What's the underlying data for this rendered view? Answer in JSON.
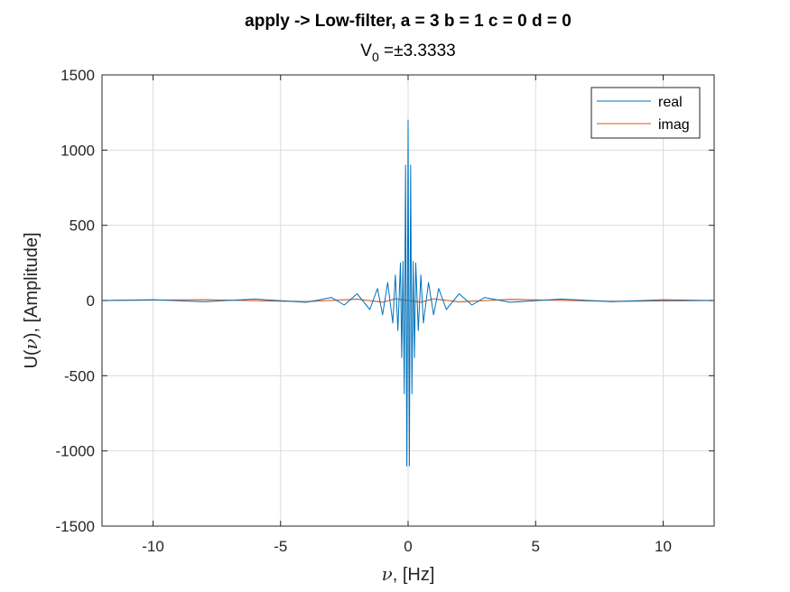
{
  "chart_data": {
    "type": "line",
    "title": "apply -> Low-filter, a = 3 b = 1 c = 0 d = 0",
    "subtitle_prefix": "V",
    "subtitle_subscript": "0",
    "subtitle_suffix": " =±3.3333",
    "xlabel_symbol": "ν",
    "xlabel_text": ", [Hz]",
    "ylabel_prefix": "U(",
    "ylabel_symbol": "ν",
    "ylabel_suffix": "), [Amplitude]",
    "xlim": [
      -12,
      12
    ],
    "ylim": [
      -1500,
      1500
    ],
    "xticks": [
      -10,
      -5,
      0,
      5,
      10
    ],
    "yticks": [
      -1500,
      -1000,
      -500,
      0,
      500,
      1000,
      1500
    ],
    "grid": true,
    "legend_position": "top-right",
    "series": [
      {
        "name": "real",
        "color": "#0072BD",
        "x": [
          -12,
          -10,
          -8,
          -6,
          -4,
          -3,
          -2.5,
          -2,
          -1.5,
          -1.2,
          -1.0,
          -0.8,
          -0.6,
          -0.5,
          -0.4,
          -0.3,
          -0.25,
          -0.2,
          -0.15,
          -0.1,
          -0.05,
          0,
          0.05,
          0.1,
          0.15,
          0.2,
          0.25,
          0.3,
          0.4,
          0.5,
          0.6,
          0.8,
          1.0,
          1.2,
          1.5,
          2,
          2.5,
          3,
          4,
          6,
          8,
          10,
          12
        ],
        "y": [
          0,
          5,
          -8,
          10,
          -12,
          20,
          -30,
          45,
          -60,
          80,
          -95,
          120,
          -150,
          170,
          -200,
          250,
          -380,
          260,
          -620,
          900,
          -1100,
          1200,
          -1100,
          900,
          -620,
          260,
          -380,
          250,
          -200,
          170,
          -150,
          120,
          -95,
          80,
          -60,
          45,
          -30,
          20,
          -12,
          10,
          -8,
          5,
          0
        ]
      },
      {
        "name": "imag",
        "color": "#D95319",
        "x": [
          -12,
          -8,
          -4,
          -2,
          -1,
          -0.5,
          0,
          0.5,
          1,
          2,
          4,
          8,
          12
        ],
        "y": [
          0,
          6,
          -8,
          10,
          -12,
          12,
          0,
          -12,
          12,
          -10,
          8,
          -6,
          0
        ]
      }
    ]
  }
}
